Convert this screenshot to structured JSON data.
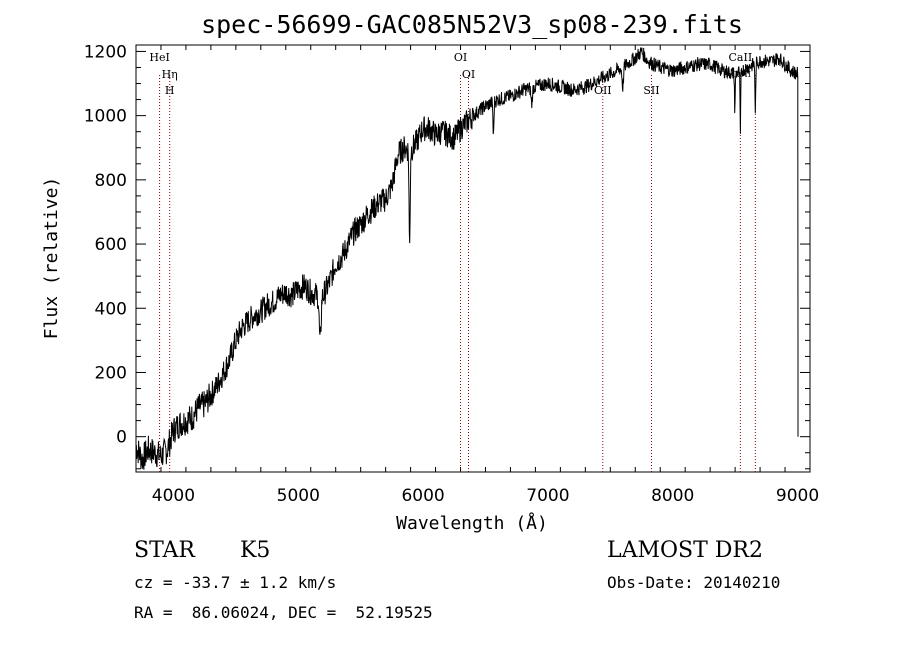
{
  "chart_data": {
    "type": "line",
    "title": "spec-56699-GAC085N52V3_sp08-239.fits",
    "xlabel": "Wavelength (Å)",
    "ylabel": "Flux (relative)",
    "xlim": [
      3700,
      9100
    ],
    "ylim": [
      -110,
      1220
    ],
    "x_ticks": [
      4000,
      5000,
      6000,
      7000,
      8000,
      9000
    ],
    "y_ticks": [
      0,
      200,
      400,
      600,
      800,
      1000,
      1200
    ],
    "grid": false,
    "series_color": "#000000",
    "line_marker_color": "#8b0000",
    "anchors": [
      [
        3700,
        -30
      ],
      [
        3750,
        -70
      ],
      [
        3800,
        -40
      ],
      [
        3850,
        -50
      ],
      [
        3900,
        -60
      ],
      [
        3950,
        -40
      ],
      [
        4000,
        20
      ],
      [
        4050,
        40
      ],
      [
        4100,
        50
      ],
      [
        4150,
        60
      ],
      [
        4200,
        90
      ],
      [
        4250,
        100
      ],
      [
        4300,
        130
      ],
      [
        4350,
        160
      ],
      [
        4400,
        200
      ],
      [
        4450,
        240
      ],
      [
        4500,
        300
      ],
      [
        4550,
        340
      ],
      [
        4600,
        360
      ],
      [
        4650,
        380
      ],
      [
        4700,
        390
      ],
      [
        4750,
        410
      ],
      [
        4800,
        420
      ],
      [
        4850,
        440
      ],
      [
        4900,
        450
      ],
      [
        4950,
        440
      ],
      [
        5000,
        460
      ],
      [
        5050,
        470
      ],
      [
        5100,
        450
      ],
      [
        5150,
        440
      ],
      [
        5200,
        440
      ],
      [
        5250,
        480
      ],
      [
        5300,
        540
      ],
      [
        5350,
        560
      ],
      [
        5400,
        600
      ],
      [
        5450,
        640
      ],
      [
        5500,
        660
      ],
      [
        5550,
        690
      ],
      [
        5600,
        710
      ],
      [
        5650,
        730
      ],
      [
        5700,
        740
      ],
      [
        5750,
        780
      ],
      [
        5800,
        880
      ],
      [
        5850,
        900
      ],
      [
        5900,
        890
      ],
      [
        5950,
        920
      ],
      [
        6000,
        960
      ],
      [
        6050,
        960
      ],
      [
        6100,
        940
      ],
      [
        6150,
        950
      ],
      [
        6200,
        940
      ],
      [
        6250,
        930
      ],
      [
        6300,
        960
      ],
      [
        6350,
        980
      ],
      [
        6400,
        1000
      ],
      [
        6500,
        1030
      ],
      [
        6600,
        1050
      ],
      [
        6700,
        1060
      ],
      [
        6800,
        1080
      ],
      [
        6900,
        1090
      ],
      [
        7000,
        1100
      ],
      [
        7100,
        1090
      ],
      [
        7200,
        1080
      ],
      [
        7300,
        1090
      ],
      [
        7400,
        1110
      ],
      [
        7500,
        1130
      ],
      [
        7600,
        1150
      ],
      [
        7700,
        1180
      ],
      [
        7750,
        1200
      ],
      [
        7800,
        1170
      ],
      [
        7900,
        1150
      ],
      [
        8000,
        1140
      ],
      [
        8100,
        1150
      ],
      [
        8200,
        1160
      ],
      [
        8300,
        1160
      ],
      [
        8400,
        1140
      ],
      [
        8500,
        1130
      ],
      [
        8600,
        1150
      ],
      [
        8700,
        1170
      ],
      [
        8800,
        1170
      ],
      [
        8850,
        1180
      ],
      [
        8900,
        1160
      ],
      [
        8950,
        1140
      ],
      [
        9000,
        1130
      ]
    ],
    "absorption_features": [
      {
        "center": 5175,
        "depth": 150,
        "width": 10
      },
      {
        "center": 5892,
        "depth": 300,
        "width": 6
      },
      {
        "center": 6564,
        "depth": 110,
        "width": 5
      },
      {
        "center": 6870,
        "depth": 50,
        "width": 8
      },
      {
        "center": 7600,
        "depth": 60,
        "width": 8
      },
      {
        "center": 8498,
        "depth": 120,
        "width": 4
      },
      {
        "center": 8542,
        "depth": 200,
        "width": 4
      },
      {
        "center": 8662,
        "depth": 170,
        "width": 4
      }
    ],
    "end_drop": {
      "x_start": 9000,
      "values": [
        1120,
        980,
        600,
        250,
        0
      ]
    },
    "spectral_lines": [
      {
        "x": 3889,
        "label": "HeI",
        "label_row": "top"
      },
      {
        "x": 3970,
        "label": "Hη",
        "label_row": "mid"
      },
      {
        "x": 3970,
        "label": "H",
        "label_row": "low"
      },
      {
        "x": 6300,
        "label": "OI",
        "label_row": "top"
      },
      {
        "x": 6364,
        "label": "OI",
        "label_row": "mid"
      },
      {
        "x": 7440,
        "label": "OII",
        "label_row": "low"
      },
      {
        "x": 7830,
        "label": "SII",
        "label_row": "low"
      },
      {
        "x": 8542,
        "label": "CaII",
        "label_row": "top"
      },
      {
        "x": 8662,
        "label": "",
        "label_row": "none"
      }
    ],
    "small_annotation": "Ca II"
  },
  "info": {
    "star_label": "STAR",
    "spectral_type": "K5",
    "survey": "LAMOST DR2",
    "velocity": "cz = -33.7 ± 1.2 km/s",
    "obs_date": "Obs-Date: 20140210",
    "coords": "RA =  86.06024, DEC =  52.19525"
  }
}
